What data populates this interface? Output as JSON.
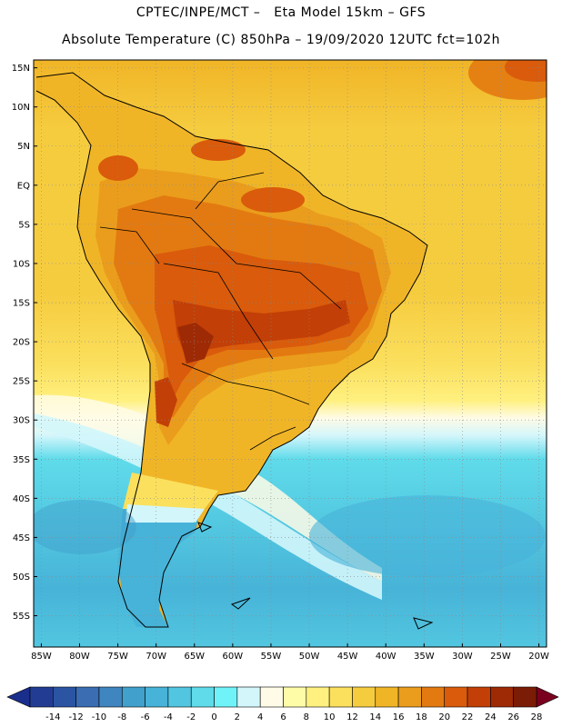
{
  "header": {
    "line1": "CPTEC/INPE/MCT –   Eta Model 15km – GFS",
    "line2": "Absolute Temperature (C) 850hPa – 19/09/2020 12UTC fct=102h"
  },
  "map": {
    "lon_range": [
      -86,
      -19
    ],
    "lat_range": [
      -59,
      16
    ],
    "lat_ticks": [
      {
        "value": 15,
        "label": "15N"
      },
      {
        "value": 10,
        "label": "10N"
      },
      {
        "value": 5,
        "label": "5N"
      },
      {
        "value": 0,
        "label": "EQ"
      },
      {
        "value": -5,
        "label": "5S"
      },
      {
        "value": -10,
        "label": "10S"
      },
      {
        "value": -15,
        "label": "15S"
      },
      {
        "value": -20,
        "label": "20S"
      },
      {
        "value": -25,
        "label": "25S"
      },
      {
        "value": -30,
        "label": "30S"
      },
      {
        "value": -35,
        "label": "35S"
      },
      {
        "value": -40,
        "label": "40S"
      },
      {
        "value": -45,
        "label": "45S"
      },
      {
        "value": -50,
        "label": "50S"
      },
      {
        "value": -55,
        "label": "55S"
      }
    ],
    "lon_ticks": [
      {
        "value": -85,
        "label": "85W"
      },
      {
        "value": -80,
        "label": "80W"
      },
      {
        "value": -75,
        "label": "75W"
      },
      {
        "value": -70,
        "label": "70W"
      },
      {
        "value": -65,
        "label": "65W"
      },
      {
        "value": -60,
        "label": "60W"
      },
      {
        "value": -55,
        "label": "55W"
      },
      {
        "value": -50,
        "label": "50W"
      },
      {
        "value": -45,
        "label": "45W"
      },
      {
        "value": -40,
        "label": "40W"
      },
      {
        "value": -35,
        "label": "35W"
      },
      {
        "value": -30,
        "label": "30W"
      },
      {
        "value": -25,
        "label": "25W"
      },
      {
        "value": -20,
        "label": "20W"
      }
    ]
  },
  "colorbar": {
    "labels": [
      "-14",
      "-12",
      "-10",
      "-8",
      "-6",
      "-4",
      "-2",
      "0",
      "2",
      "4",
      "6",
      "8",
      "10",
      "12",
      "14",
      "16",
      "18",
      "20",
      "22",
      "24",
      "26",
      "28"
    ],
    "low_color": "#1a2e8c",
    "high_color": "#7a0020",
    "colors": [
      "#233c93",
      "#2b55a3",
      "#3a6db2",
      "#3f85bf",
      "#41a0cc",
      "#47b3d8",
      "#52c6e0",
      "#5fdbea",
      "#6ff3f8",
      "#d3f6fb",
      "#fffbe6",
      "#fffca8",
      "#fff07f",
      "#fbe05e",
      "#f6cc3f",
      "#f0b527",
      "#ea9d1c",
      "#e37a11",
      "#d95b0b",
      "#c23f07",
      "#9e2a05",
      "#7a1c06"
    ]
  }
}
